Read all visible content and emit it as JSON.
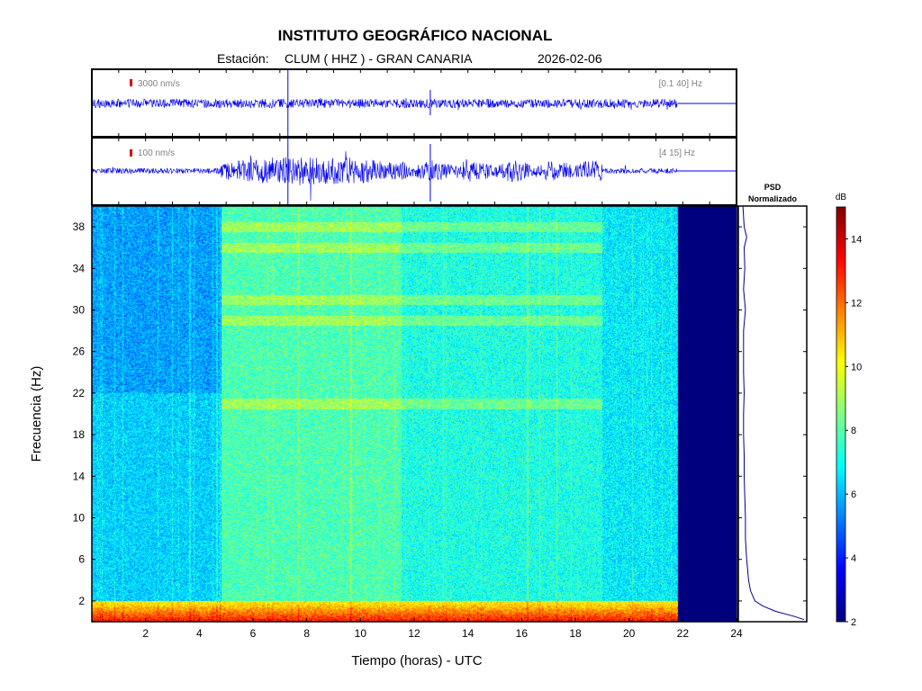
{
  "header": {
    "title": "INSTITUTO GEOGRÁFICO NACIONAL",
    "station_label": "Estación:",
    "station": "CLUM ( HHZ ) - GRAN CANARIA",
    "date": "2026-02-06"
  },
  "colors": {
    "trace": "#0000ee",
    "scale_marker": "#e00000",
    "colormap": [
      "#00007f",
      "#0000ff",
      "#0080ff",
      "#00ffff",
      "#80ff80",
      "#ffff00",
      "#ff8000",
      "#ff0000",
      "#7f0000"
    ]
  },
  "chart_data": [
    {
      "type": "line",
      "panel": "seismogram-broadband",
      "scale_label": "3000 nm/s",
      "filter_label": "[0.1 40] Hz",
      "data_end_hour": 21.8,
      "xlim": [
        0,
        24
      ],
      "events_hour": [
        7.3,
        12.6
      ]
    },
    {
      "type": "line",
      "panel": "seismogram-filtered",
      "scale_label": "100 nm/s",
      "filter_label": "[4 15] Hz",
      "data_end_hour": 21.8,
      "xlim": [
        0,
        24
      ],
      "high_activity_hours": [
        4.8,
        11.5
      ],
      "events_hour": [
        7.3,
        12.6
      ]
    },
    {
      "type": "heatmap",
      "panel": "spectrogram",
      "xlabel": "Tiempo (horas) - UTC",
      "ylabel": "Frecuencia  (Hz)",
      "xlim": [
        0,
        24
      ],
      "ylim": [
        0,
        40
      ],
      "xticks": [
        2,
        4,
        6,
        8,
        10,
        12,
        14,
        16,
        18,
        20,
        22,
        24
      ],
      "yticks": [
        2,
        6,
        10,
        14,
        18,
        22,
        26,
        30,
        34,
        38
      ],
      "data_end_hour": 21.8,
      "high_energy_band_hours": [
        4.8,
        11.5
      ],
      "low_frequency_band_hz": [
        0,
        2
      ],
      "band_lines_hz": [
        21,
        29,
        31,
        36,
        38
      ]
    },
    {
      "type": "line",
      "panel": "psd",
      "title_line1": "PSD",
      "title_line2": "Normalizado",
      "freq_hz": [
        0.2,
        0.5,
        1,
        1.5,
        2,
        3,
        4,
        6,
        8,
        10,
        12,
        14,
        16,
        18,
        20,
        22,
        24,
        26,
        28,
        30,
        32,
        34,
        36,
        37,
        38,
        40
      ],
      "value": [
        1.0,
        0.85,
        0.55,
        0.35,
        0.22,
        0.15,
        0.12,
        0.09,
        0.07,
        0.07,
        0.06,
        0.05,
        0.05,
        0.04,
        0.04,
        0.05,
        0.04,
        0.04,
        0.04,
        0.07,
        0.04,
        0.06,
        0.05,
        0.09,
        0.05,
        0.03
      ]
    },
    {
      "type": "heatmap",
      "panel": "colorbar",
      "label": "dB",
      "range": [
        2,
        15
      ],
      "ticks": [
        2,
        4,
        6,
        8,
        10,
        12,
        14
      ]
    }
  ]
}
